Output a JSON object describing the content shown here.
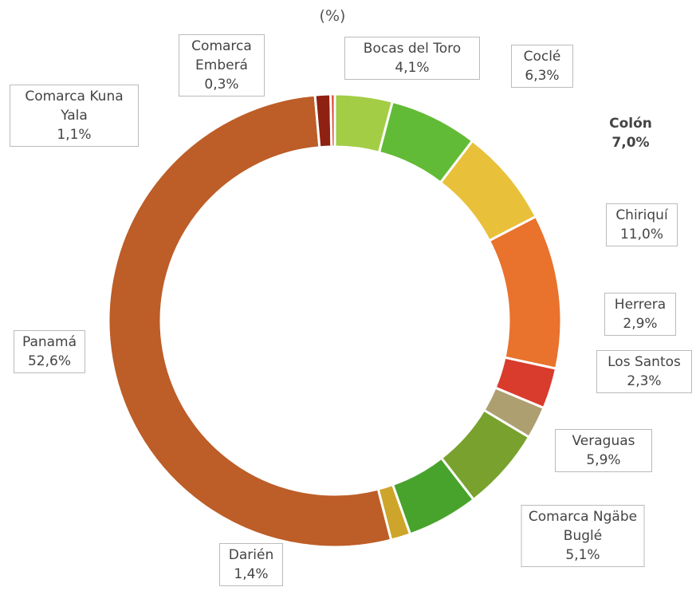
{
  "chart_data": {
    "type": "donut",
    "title": "(%)",
    "categories": [
      "Bocas del Toro",
      "Coclé",
      "Colón",
      "Chiriquí",
      "Herrera",
      "Los Santos",
      "Veraguas",
      "Comarca Ngäbe Buglé",
      "Darién",
      "Panamá",
      "Comarca Kuna Yala",
      "Comarca Emberá"
    ],
    "values": [
      4.1,
      6.3,
      7.0,
      11.0,
      2.9,
      2.3,
      5.9,
      5.1,
      1.4,
      52.6,
      1.1,
      0.3
    ],
    "value_labels": [
      "4,1%",
      "6,3%",
      "7,0%",
      "11,0%",
      "2,9%",
      "2,3%",
      "5,9%",
      "5,1%",
      "1,4%",
      "52,6%",
      "1,1%",
      "0,3%"
    ],
    "colors": [
      "#a3cd45",
      "#62bb36",
      "#e9c03a",
      "#e9722c",
      "#d93b2c",
      "#ad9f70",
      "#78a22d",
      "#47a32c",
      "#cda52a",
      "#bd5d27",
      "#8e2112",
      "#e2402a"
    ]
  }
}
